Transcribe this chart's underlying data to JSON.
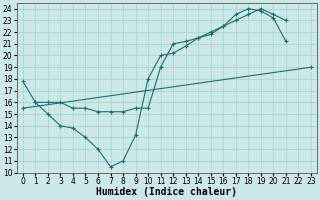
{
  "background_color": "#cce8e8",
  "line_color": "#1a6e6e",
  "grid_color": "#aad4d4",
  "xlabel": "Humidex (Indice chaleur)",
  "xlabel_fontsize": 7,
  "tick_fontsize": 5.5,
  "ylim": [
    10,
    24.5
  ],
  "xlim": [
    -0.5,
    23.5
  ],
  "yticks": [
    10,
    11,
    12,
    13,
    14,
    15,
    16,
    17,
    18,
    19,
    20,
    21,
    22,
    23,
    24
  ],
  "xticks": [
    0,
    1,
    2,
    3,
    4,
    5,
    6,
    7,
    8,
    9,
    10,
    11,
    12,
    13,
    14,
    15,
    16,
    17,
    18,
    19,
    20,
    21,
    22,
    23
  ],
  "line1_x": [
    0,
    1,
    2,
    3,
    4,
    5,
    6,
    7,
    8,
    9,
    10,
    11,
    12,
    13,
    14,
    15,
    16,
    17,
    18,
    19,
    20,
    21
  ],
  "line1_y": [
    17.8,
    16.0,
    15.0,
    14.0,
    13.8,
    13.0,
    12.0,
    10.5,
    11.0,
    13.2,
    18.0,
    20.0,
    20.2,
    20.8,
    21.5,
    21.8,
    22.5,
    23.5,
    24.0,
    23.8,
    23.2,
    21.2
  ],
  "line2_x": [
    1,
    2,
    3,
    4,
    5,
    6,
    7,
    8,
    9,
    10,
    11,
    12,
    13,
    14,
    15,
    16,
    17,
    18,
    19,
    20,
    21
  ],
  "line2_y": [
    16.0,
    16.0,
    16.0,
    15.5,
    15.5,
    15.2,
    15.2,
    15.2,
    15.5,
    15.5,
    19.0,
    21.0,
    21.2,
    21.5,
    22.0,
    22.5,
    23.0,
    23.5,
    24.0,
    23.5,
    23.0
  ],
  "line3_x": [
    0,
    23
  ],
  "line3_y": [
    15.5,
    19.0
  ]
}
